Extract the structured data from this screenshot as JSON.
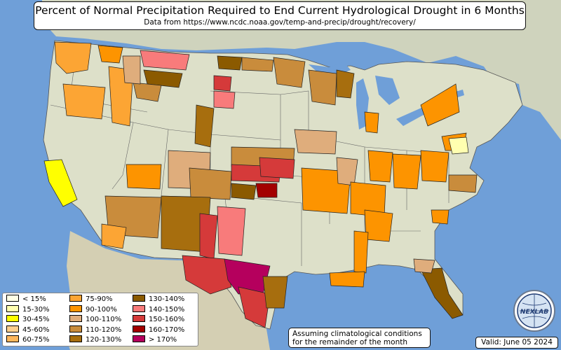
{
  "title": "Percent of Normal Precipitation Required to End Current Hydrological Drought in 6 Months",
  "subtitle": "Data from https://www.ncdc.noaa.gov/temp-and-precip/drought/recovery/",
  "note": {
    "line1": "Assuming climatological conditions",
    "line2": "for the remainder of the month"
  },
  "valid": "Valid: June 05 2024",
  "logo": {
    "icon": "nexlab-globe-logo",
    "text": "NEXLAB"
  },
  "colors": {
    "ocean": "#6f9fd8",
    "land": "#d9dcc4",
    "border": "#555555"
  },
  "legend": [
    {
      "label": "< 15%",
      "color": "#ffffe5"
    },
    {
      "label": "15-30%",
      "color": "#ffffb0"
    },
    {
      "label": "30-45%",
      "color": "#ffff00"
    },
    {
      "label": "45-60%",
      "color": "#fdcf8e"
    },
    {
      "label": "60-75%",
      "color": "#fdb75c"
    },
    {
      "label": "75-90%",
      "color": "#fca534"
    },
    {
      "label": "90-100%",
      "color": "#fd9400"
    },
    {
      "label": "100-110%",
      "color": "#dfad7c"
    },
    {
      "label": "110-120%",
      "color": "#c98c3c"
    },
    {
      "label": "120-130%",
      "color": "#a76e0e"
    },
    {
      "label": "130-140%",
      "color": "#8b5a00"
    },
    {
      "label": "140-150%",
      "color": "#f87b7b"
    },
    {
      "label": "150-160%",
      "color": "#d53a3a"
    },
    {
      "label": "160-170%",
      "color": "#a30000"
    },
    {
      "label": "> 170%",
      "color": "#b5005d"
    }
  ]
}
